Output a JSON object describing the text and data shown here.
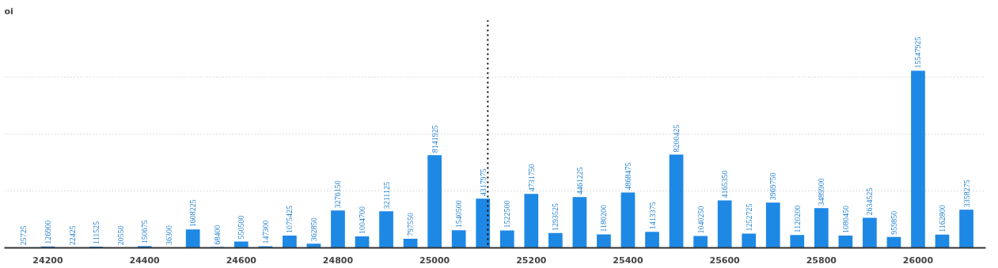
{
  "chart_data": {
    "type": "bar",
    "title": "oi",
    "x": [
      24150,
      24200,
      24250,
      24300,
      24350,
      24400,
      24450,
      24500,
      24550,
      24600,
      24650,
      24700,
      24750,
      24800,
      24850,
      24900,
      24950,
      25000,
      25050,
      25100,
      25150,
      25200,
      25250,
      25300,
      25350,
      25400,
      25450,
      25500,
      25550,
      25600,
      25650,
      25700,
      25750,
      25800,
      25850,
      25900,
      25950,
      26000,
      26050,
      26100
    ],
    "values": [
      25725,
      126900,
      22425,
      111525,
      20550,
      150675,
      36300,
      1608225,
      68400,
      550500,
      147300,
      1075425,
      362850,
      3276150,
      1004700,
      3211125,
      797550,
      8141925,
      1540500,
      4317975,
      1522500,
      4731750,
      1293525,
      4461225,
      1180200,
      4868475,
      1413375,
      8200425,
      1040250,
      4165350,
      1252725,
      3969750,
      1120200,
      3489900,
      1080450,
      2634525,
      959850,
      15547925,
      1162800,
      3358275
    ],
    "color": "#1e88e5",
    "data_labels": true,
    "xlim": [
      24110,
      26140
    ],
    "xticks": [
      24200,
      24400,
      24600,
      24800,
      25000,
      25200,
      25400,
      25600,
      25800,
      26000
    ],
    "ylim": [
      0,
      20000000
    ],
    "yticks": [
      5000000,
      10000000,
      15000000
    ],
    "tick_labels": "x",
    "grid": "y",
    "ref_lines": [
      {
        "axis": "x",
        "value": 25110,
        "line_style": "dotted"
      }
    ]
  }
}
